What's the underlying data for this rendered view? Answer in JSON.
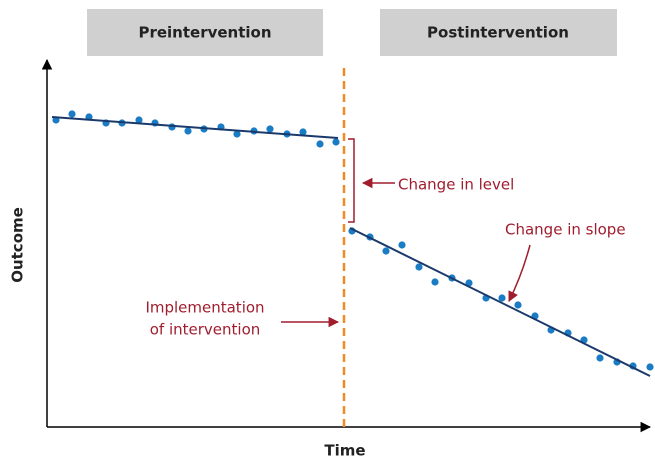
{
  "phases": {
    "pre": "Preintervention",
    "post": "Postintervention"
  },
  "axes": {
    "y": "Outcome",
    "x": "Time"
  },
  "annotations": {
    "level": "Change in level",
    "slope": "Change in slope",
    "implementation": [
      "Implementation",
      "of intervention"
    ]
  }
}
